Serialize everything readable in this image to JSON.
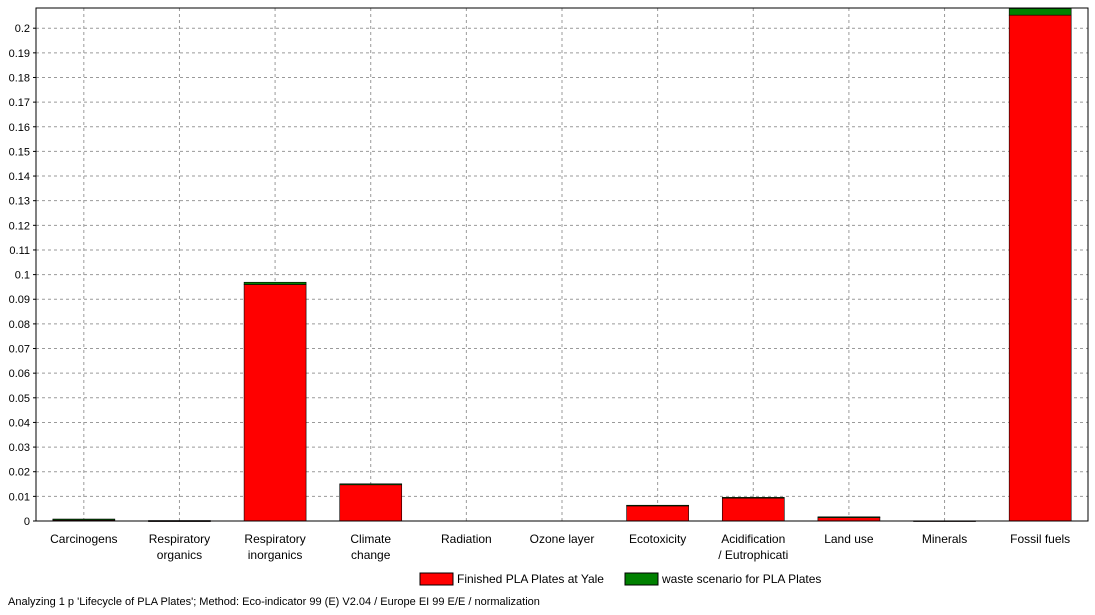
{
  "chart_data": {
    "type": "bar",
    "stacked": true,
    "categories": [
      [
        "Carcinogens"
      ],
      [
        "Respiratory",
        "organics"
      ],
      [
        "Respiratory",
        "inorganics"
      ],
      [
        "Climate",
        "change"
      ],
      [
        "Radiation"
      ],
      [
        "Ozone layer"
      ],
      [
        "Ecotoxicity"
      ],
      [
        "Acidification",
        "/ Eutrophicati"
      ],
      [
        "Land use"
      ],
      [
        "Minerals"
      ],
      [
        "Fossil fuels"
      ]
    ],
    "series": [
      {
        "name": "Finished PLA Plates at Yale",
        "color": "#ff0000",
        "values": [
          0.0004,
          0.0001,
          0.096,
          0.0147,
          0.0,
          0.0,
          0.0063,
          0.0093,
          0.0014,
          0.0001,
          0.2053
        ]
      },
      {
        "name": "waste scenario for PLA Plates",
        "color": "#008000",
        "values": [
          0.0004,
          0.0001,
          0.0009,
          0.0004,
          0.0,
          0.0,
          0.0001,
          0.0003,
          0.0003,
          0.0,
          0.0027
        ]
      }
    ],
    "yticks": [
      "0",
      "0.01",
      "0.02",
      "0.03",
      "0.04",
      "0.05",
      "0.06",
      "0.07",
      "0.08",
      "0.09",
      "0.1",
      "0.11",
      "0.12",
      "0.13",
      "0.14",
      "0.15",
      "0.16",
      "0.17",
      "0.18",
      "0.19",
      "0.2"
    ],
    "ylim": [
      0,
      0.2082
    ],
    "grid": true,
    "legend_position": "bottom"
  },
  "footer_text": "Analyzing 1 p 'Lifecycle of PLA Plates';  Method: Eco-indicator 99 (E) V2.04 /  Europe EI 99 E/E / normalization"
}
